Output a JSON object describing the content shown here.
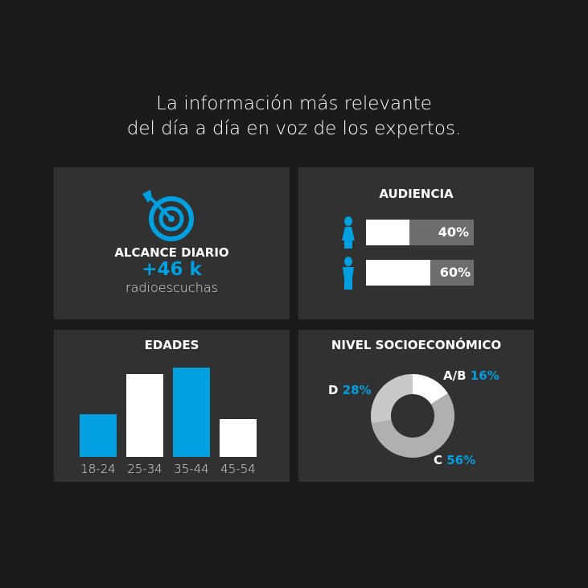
{
  "title": {
    "line1": "La información más relevante",
    "line2": "del día a día en voz de los expertos."
  },
  "reach": {
    "icon": "target-arrow-icon",
    "label": "ALCANCE DIARIO",
    "value": "+46 k",
    "unit": "radioescuchas"
  },
  "colors": {
    "accent": "#009fe0",
    "background": "#1b1b1b",
    "panel": "#313131"
  },
  "chart_data": [
    {
      "type": "bar",
      "title": "AUDIENCIA",
      "orientation": "horizontal",
      "categories": [
        "female",
        "male"
      ],
      "icons": [
        "female-icon",
        "male-icon"
      ],
      "values": [
        40,
        60
      ],
      "labels": [
        "40%",
        "60%"
      ]
    },
    {
      "type": "bar",
      "title": "EDADES",
      "categories": [
        "18-24",
        "25-34",
        "35-44",
        "45-54"
      ],
      "values": [
        53,
        103,
        111,
        47
      ],
      "colors": [
        "#009fe0",
        "#ffffff",
        "#009fe0",
        "#ffffff"
      ]
    },
    {
      "type": "pie",
      "title": "NIVEL SOCIOECONÓMICO",
      "donut": true,
      "slices": [
        {
          "label": "A/B",
          "value": 16,
          "text": "16%",
          "color": "#ffffff"
        },
        {
          "label": "C",
          "value": 56,
          "text": "56%",
          "color": "#b0b0b0"
        },
        {
          "label": "D",
          "value": 28,
          "text": "28%",
          "color": "#c9c9c9"
        }
      ]
    }
  ]
}
